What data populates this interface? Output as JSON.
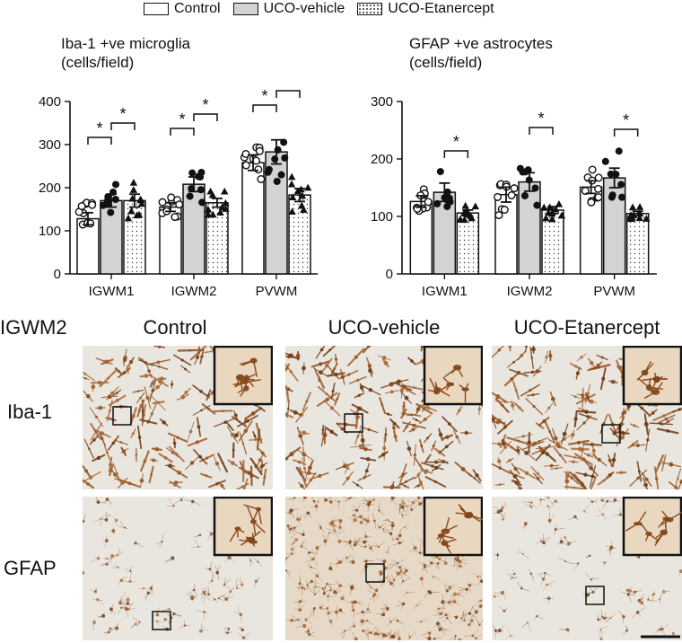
{
  "legend": [
    {
      "label": "Control",
      "fill": "#ffffff"
    },
    {
      "label": "UCO-vehicle",
      "fill": "#d3d3d3"
    },
    {
      "label": "UCO-Etanercept",
      "fill": "dots"
    }
  ],
  "chart_data": [
    {
      "type": "bar",
      "title_line1": "Iba-1 +ve microglia",
      "title_line2": "(cells/field)",
      "categories": [
        "IGWM1",
        "IGWM2",
        "PVWM"
      ],
      "ylim": [
        0,
        400
      ],
      "yticks": [
        "0",
        "100",
        "200",
        "300",
        "400"
      ],
      "series": [
        {
          "name": "Control",
          "values": [
            128,
            155,
            258
          ],
          "errors": [
            14,
            10,
            18
          ]
        },
        {
          "name": "UCO-vehicle",
          "values": [
            170,
            208,
            283
          ],
          "errors": [
            15,
            17,
            28
          ]
        },
        {
          "name": "UCO-Etanercept",
          "values": [
            170,
            165,
            183
          ],
          "errors": [
            15,
            10,
            15
          ]
        }
      ],
      "significance": [
        "*",
        "*",
        "*",
        "*",
        "*",
        "*"
      ]
    },
    {
      "type": "bar",
      "title_line1": "GFAP +ve astrocytes",
      "title_line2": "(cells/field)",
      "categories": [
        "IGWM1",
        "IGWM2",
        "PVWM"
      ],
      "ylim": [
        0,
        300
      ],
      "yticks": [
        "0",
        "100",
        "200",
        "300"
      ],
      "series": [
        {
          "name": "Control",
          "values": [
            126,
            138,
            151
          ],
          "errors": [
            10,
            13,
            11
          ]
        },
        {
          "name": "UCO-vehicle",
          "values": [
            142,
            160,
            167
          ],
          "errors": [
            16,
            16,
            17
          ]
        },
        {
          "name": "UCO-Etanercept",
          "values": [
            106,
            111,
            105
          ],
          "errors": [
            5,
            6,
            4
          ]
        }
      ],
      "significance": [
        "*",
        "*",
        "*"
      ]
    }
  ],
  "micrographs": {
    "region_label": "IGWM2",
    "columns": [
      "Control",
      "UCO-vehicle",
      "UCO-Etanercept"
    ],
    "rows": [
      "Iba-1",
      "GFAP"
    ]
  }
}
